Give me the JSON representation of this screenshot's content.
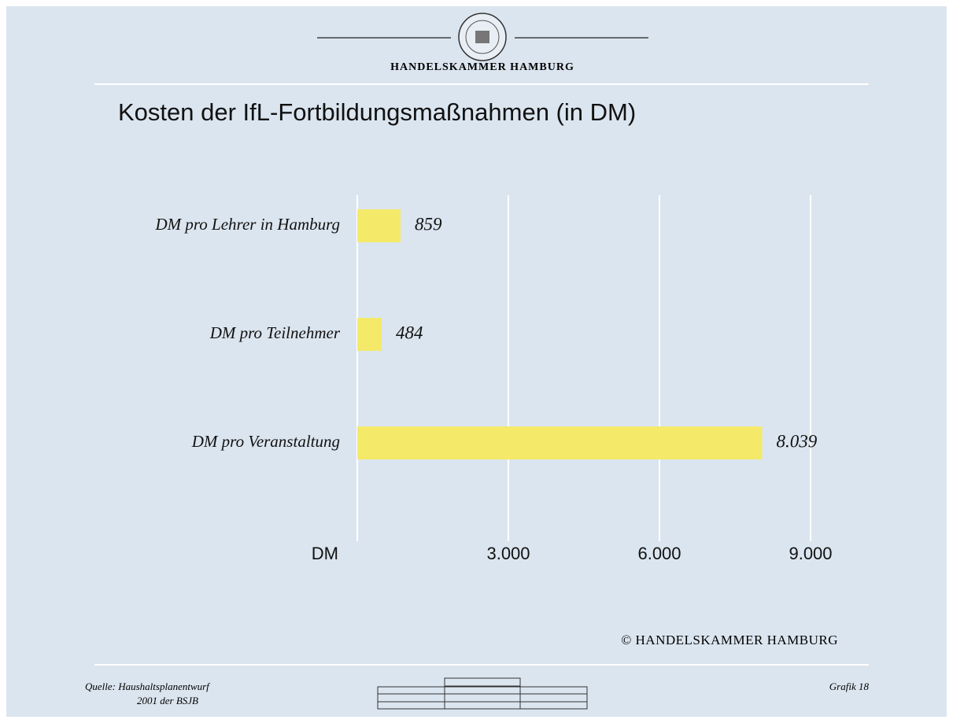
{
  "header": {
    "org": "HANDELSKAMMER HAMBURG"
  },
  "chart_data": {
    "type": "hbar",
    "title": "Kosten der IfL-Fortbildungsmaßnahmen (in DM)",
    "categories": [
      "DM pro Lehrer in Hamburg",
      "DM pro Teilnehmer",
      "DM pro Veranstaltung"
    ],
    "values": [
      859,
      484,
      8039
    ],
    "value_labels": [
      "859",
      "484",
      "8.039"
    ],
    "color": "#f5e96a",
    "xlim": [
      0,
      9000
    ],
    "xticks": [
      {
        "value": 0,
        "label": "DM"
      },
      {
        "value": 3000,
        "label": "3.000"
      },
      {
        "value": 6000,
        "label": "6.000"
      },
      {
        "value": 9000,
        "label": "9.000"
      }
    ],
    "grid": true
  },
  "footer": {
    "copyright": "© HANDELSKAMMER HAMBURG",
    "source_line1": "Quelle: Haushaltsplanentwurf",
    "source_line2": "2001 der BSJB",
    "page": "Grafik 18"
  }
}
